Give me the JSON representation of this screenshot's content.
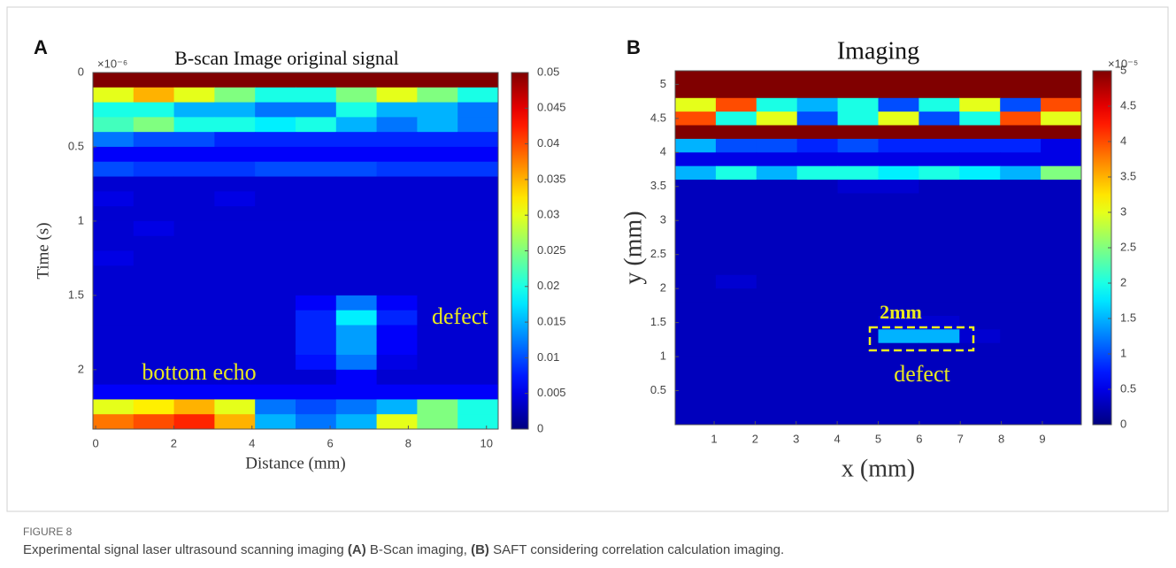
{
  "chart_data": [
    {
      "type": "heatmap",
      "panel": "A",
      "title": "B-scan Image original signal",
      "xlabel": "Distance (mm)",
      "ylabel": "Time (s)",
      "y_exponent": "×10⁻⁶",
      "c_exponent": null,
      "colormap": "jet",
      "y_inverted": true,
      "xlim": [
        -0.07,
        10.3
      ],
      "ylim": [
        0,
        2.4
      ],
      "xticks": [
        0,
        2,
        4,
        6,
        8,
        10
      ],
      "yticks": [
        0,
        0.5,
        1,
        1.5,
        2
      ],
      "clim": [
        0,
        0.05
      ],
      "cticks": [
        0,
        0.005,
        0.01,
        0.015,
        0.02,
        0.025,
        0.03,
        0.035,
        0.04,
        0.045,
        0.05
      ],
      "annotations": [
        "defect",
        "bottom echo"
      ],
      "z": [
        [
          0.05,
          0.05,
          0.05,
          0.05,
          0.05,
          0.05,
          0.05,
          0.05,
          0.05,
          0.05
        ],
        [
          0.03,
          0.035,
          0.03,
          0.025,
          0.02,
          0.02,
          0.025,
          0.03,
          0.025,
          0.02
        ],
        [
          0.02,
          0.02,
          0.015,
          0.015,
          0.012,
          0.012,
          0.02,
          0.015,
          0.015,
          0.012
        ],
        [
          0.022,
          0.025,
          0.02,
          0.02,
          0.018,
          0.02,
          0.015,
          0.012,
          0.015,
          0.012
        ],
        [
          0.012,
          0.01,
          0.01,
          0.008,
          0.008,
          0.008,
          0.008,
          0.008,
          0.008,
          0.008
        ],
        [
          0.006,
          0.006,
          0.006,
          0.006,
          0.006,
          0.006,
          0.006,
          0.006,
          0.006,
          0.006
        ],
        [
          0.01,
          0.009,
          0.009,
          0.009,
          0.01,
          0.01,
          0.01,
          0.009,
          0.009,
          0.009
        ],
        [
          0.004,
          0.004,
          0.004,
          0.004,
          0.004,
          0.004,
          0.004,
          0.004,
          0.004,
          0.004
        ],
        [
          0.005,
          0.004,
          0.004,
          0.005,
          0.004,
          0.004,
          0.004,
          0.004,
          0.004,
          0.004
        ],
        [
          0.004,
          0.004,
          0.004,
          0.004,
          0.004,
          0.004,
          0.004,
          0.004,
          0.004,
          0.004
        ],
        [
          0.004,
          0.005,
          0.004,
          0.004,
          0.004,
          0.004,
          0.004,
          0.004,
          0.004,
          0.004
        ],
        [
          0.004,
          0.004,
          0.004,
          0.004,
          0.004,
          0.004,
          0.004,
          0.004,
          0.004,
          0.004
        ],
        [
          0.005,
          0.004,
          0.004,
          0.004,
          0.004,
          0.004,
          0.004,
          0.004,
          0.004,
          0.004
        ],
        [
          0.004,
          0.004,
          0.004,
          0.004,
          0.004,
          0.004,
          0.004,
          0.004,
          0.004,
          0.004
        ],
        [
          0.004,
          0.004,
          0.004,
          0.004,
          0.004,
          0.004,
          0.004,
          0.004,
          0.004,
          0.004
        ],
        [
          0.004,
          0.004,
          0.004,
          0.004,
          0.004,
          0.006,
          0.012,
          0.006,
          0.004,
          0.004
        ],
        [
          0.004,
          0.004,
          0.004,
          0.004,
          0.004,
          0.008,
          0.018,
          0.008,
          0.004,
          0.004
        ],
        [
          0.004,
          0.004,
          0.004,
          0.004,
          0.004,
          0.008,
          0.014,
          0.006,
          0.004,
          0.004
        ],
        [
          0.004,
          0.004,
          0.004,
          0.004,
          0.004,
          0.008,
          0.014,
          0.006,
          0.004,
          0.004
        ],
        [
          0.004,
          0.004,
          0.004,
          0.004,
          0.004,
          0.007,
          0.012,
          0.005,
          0.004,
          0.004
        ],
        [
          0.004,
          0.004,
          0.004,
          0.004,
          0.004,
          0.004,
          0.006,
          0.004,
          0.004,
          0.004
        ],
        [
          0.006,
          0.006,
          0.006,
          0.006,
          0.006,
          0.006,
          0.006,
          0.006,
          0.006,
          0.006
        ],
        [
          0.03,
          0.032,
          0.035,
          0.03,
          0.012,
          0.01,
          0.012,
          0.015,
          0.025,
          0.02
        ],
        [
          0.038,
          0.04,
          0.042,
          0.035,
          0.015,
          0.012,
          0.015,
          0.03,
          0.025,
          0.02
        ]
      ]
    },
    {
      "type": "heatmap",
      "panel": "B",
      "title": "Imaging",
      "xlabel": "x (mm)",
      "ylabel": "y (mm)",
      "y_exponent": null,
      "c_exponent": "×10⁻⁵",
      "colormap": "jet",
      "y_inverted": false,
      "xlim": [
        0.05,
        9.95
      ],
      "ylim": [
        0,
        5.2
      ],
      "xticks": [
        1,
        2,
        3,
        4,
        5,
        6,
        7,
        8,
        9
      ],
      "yticks": [
        0.5,
        1,
        1.5,
        2,
        2.5,
        3,
        3.5,
        4,
        4.5,
        5
      ],
      "clim": [
        0,
        5
      ],
      "cticks": [
        0,
        0.5,
        1,
        1.5,
        2,
        2.5,
        3,
        3.5,
        4,
        4.5,
        5
      ],
      "annotations": [
        "2mm",
        "defect"
      ],
      "z": [
        [
          5,
          5,
          5,
          5,
          5,
          5,
          5,
          5,
          5,
          5
        ],
        [
          5,
          5,
          5,
          5,
          5,
          5,
          5,
          5,
          5,
          5
        ],
        [
          3,
          4,
          2,
          1.5,
          2,
          1,
          2,
          3,
          1,
          4
        ],
        [
          4,
          2,
          3,
          1,
          2,
          3,
          1,
          2,
          4,
          3
        ],
        [
          5,
          5,
          5,
          5,
          5,
          5,
          5,
          5,
          5,
          5
        ],
        [
          1.5,
          1,
          1,
          0.8,
          1,
          0.8,
          0.8,
          0.8,
          0.8,
          0.5
        ],
        [
          0.5,
          0.5,
          0.5,
          0.5,
          0.5,
          0.5,
          0.5,
          0.5,
          0.5,
          0.5
        ],
        [
          1.5,
          2,
          1.5,
          2,
          2,
          1.8,
          2,
          1.8,
          1.5,
          2.5
        ],
        [
          0.3,
          0.3,
          0.3,
          0.3,
          0.4,
          0.4,
          0.3,
          0.3,
          0.3,
          0.3
        ],
        [
          0.3,
          0.3,
          0.3,
          0.3,
          0.3,
          0.3,
          0.3,
          0.3,
          0.3,
          0.3
        ],
        [
          0.3,
          0.3,
          0.3,
          0.3,
          0.3,
          0.3,
          0.3,
          0.3,
          0.3,
          0.3
        ],
        [
          0.3,
          0.3,
          0.3,
          0.3,
          0.3,
          0.3,
          0.3,
          0.3,
          0.3,
          0.3
        ],
        [
          0.3,
          0.3,
          0.3,
          0.3,
          0.3,
          0.3,
          0.3,
          0.3,
          0.3,
          0.3
        ],
        [
          0.3,
          0.3,
          0.3,
          0.3,
          0.3,
          0.3,
          0.3,
          0.3,
          0.3,
          0.3
        ],
        [
          0.3,
          0.3,
          0.3,
          0.3,
          0.3,
          0.3,
          0.3,
          0.3,
          0.3,
          0.3
        ],
        [
          0.3,
          0.4,
          0.3,
          0.3,
          0.3,
          0.3,
          0.3,
          0.3,
          0.3,
          0.3
        ],
        [
          0.3,
          0.3,
          0.3,
          0.3,
          0.3,
          0.3,
          0.3,
          0.3,
          0.3,
          0.3
        ],
        [
          0.3,
          0.3,
          0.3,
          0.3,
          0.3,
          0.3,
          0.3,
          0.3,
          0.3,
          0.3
        ],
        [
          0.3,
          0.3,
          0.3,
          0.3,
          0.3,
          0.4,
          0.4,
          0.3,
          0.3,
          0.3
        ],
        [
          0.3,
          0.3,
          0.3,
          0.3,
          0.3,
          1.5,
          1.5,
          0.4,
          0.3,
          0.3
        ],
        [
          0.3,
          0.3,
          0.3,
          0.3,
          0.3,
          0.3,
          0.3,
          0.3,
          0.3,
          0.3
        ],
        [
          0.3,
          0.3,
          0.3,
          0.3,
          0.3,
          0.3,
          0.3,
          0.3,
          0.3,
          0.3
        ],
        [
          0.3,
          0.3,
          0.3,
          0.3,
          0.3,
          0.3,
          0.3,
          0.3,
          0.3,
          0.3
        ],
        [
          0.3,
          0.3,
          0.3,
          0.3,
          0.3,
          0.3,
          0.3,
          0.3,
          0.3,
          0.3
        ],
        [
          0.3,
          0.3,
          0.3,
          0.3,
          0.3,
          0.3,
          0.3,
          0.3,
          0.3,
          0.3
        ],
        [
          0.3,
          0.3,
          0.3,
          0.3,
          0.3,
          0.3,
          0.3,
          0.3,
          0.3,
          0.3
        ]
      ]
    }
  ],
  "caption": {
    "label": "FIGURE 8",
    "parts": [
      {
        "text": "Experimental signal laser ultrasound scanning imaging ",
        "bold": false
      },
      {
        "text": "(A)",
        "bold": true
      },
      {
        "text": " B-Scan imaging, ",
        "bold": false
      },
      {
        "text": "(B)",
        "bold": true
      },
      {
        "text": " SAFT considering correlation calculation imaging.",
        "bold": false
      }
    ]
  }
}
